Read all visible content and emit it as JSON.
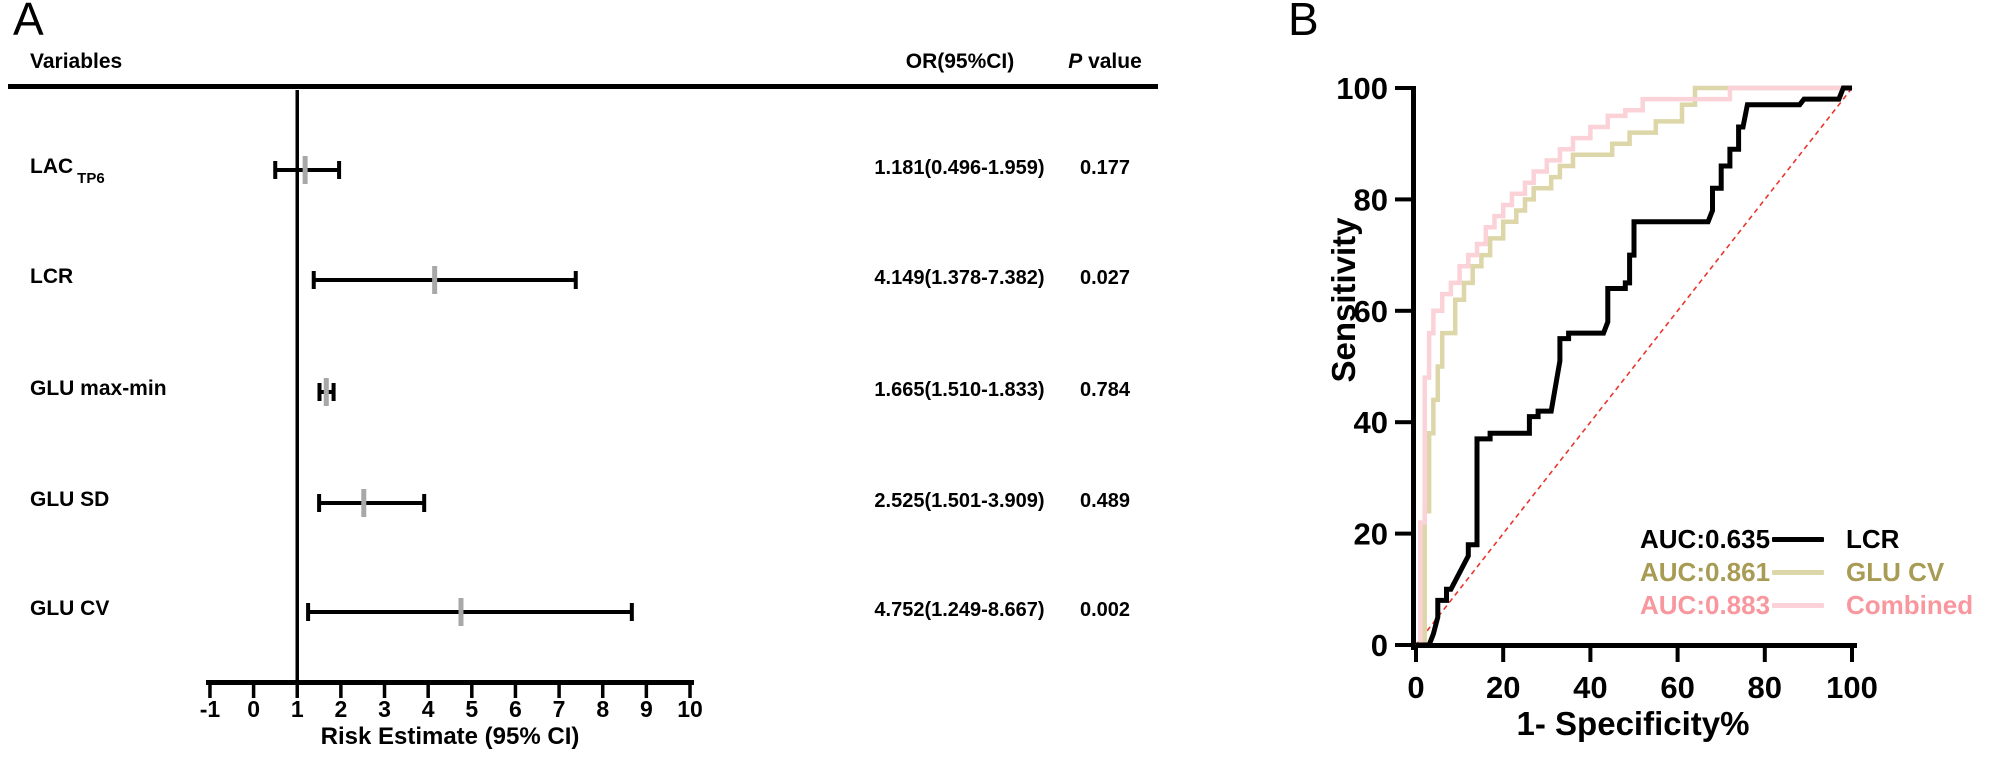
{
  "figure": {
    "background": "#ffffff"
  },
  "chart_data": [
    {
      "id": "forest-plot",
      "type": "scatter",
      "subtype": "forest",
      "panel_label": "A",
      "columns": [
        "Variables",
        "OR(95%CI)",
        "P value"
      ],
      "p_header": {
        "italic": "P",
        "rest": " value"
      },
      "xlabel": "Risk Estimate (95% CI)",
      "xlim": [
        -1,
        10
      ],
      "xticks": [
        -1,
        0,
        1,
        2,
        3,
        4,
        5,
        6,
        7,
        8,
        9,
        10
      ],
      "reference_line_x": 1,
      "marker_color": "#a8a8a8",
      "line_color": "#000000",
      "grid": false,
      "rows": [
        {
          "variable": "LAC",
          "variable_subscript": "TP6",
          "or": 1.181,
          "ci_low": 0.496,
          "ci_high": 1.959,
          "or_ci_text": "1.181(0.496-1.959)",
          "p_value": "0.177"
        },
        {
          "variable": "LCR",
          "variable_subscript": "",
          "or": 4.149,
          "ci_low": 1.378,
          "ci_high": 7.382,
          "or_ci_text": "4.149(1.378-7.382)",
          "p_value": "0.027"
        },
        {
          "variable": "GLU max-min",
          "variable_subscript": "",
          "or": 1.665,
          "ci_low": 1.51,
          "ci_high": 1.833,
          "or_ci_text": "1.665(1.510-1.833)",
          "p_value": "0.784"
        },
        {
          "variable": "GLU SD",
          "variable_subscript": "",
          "or": 2.525,
          "ci_low": 1.501,
          "ci_high": 3.909,
          "or_ci_text": "2.525(1.501-3.909)",
          "p_value": "0.489"
        },
        {
          "variable": "GLU CV",
          "variable_subscript": "",
          "or": 4.752,
          "ci_low": 1.249,
          "ci_high": 8.667,
          "or_ci_text": "4.752(1.249-8.667)",
          "p_value": "0.002"
        }
      ]
    },
    {
      "id": "roc-curves",
      "type": "line",
      "subtype": "roc",
      "panel_label": "B",
      "xlabel": "1- Specificity%",
      "ylabel": "Sensitivity",
      "xlim": [
        0,
        100
      ],
      "ylim": [
        0,
        100
      ],
      "xticks": [
        0,
        20,
        40,
        60,
        80,
        100
      ],
      "yticks": [
        0,
        20,
        40,
        60,
        80,
        100
      ],
      "grid": false,
      "legend_position": "bottom-right",
      "diagonal": {
        "color": "#e8362d",
        "dash": "dashed",
        "from": [
          0,
          0
        ],
        "to": [
          100,
          100
        ]
      },
      "series": [
        {
          "name": "LCR",
          "auc_label": "AUC:0.635",
          "line_color": "#000000",
          "text_color": "#000000",
          "line_width": 5,
          "points": [
            [
              0,
              0
            ],
            [
              3,
              0
            ],
            [
              4,
              2
            ],
            [
              5,
              5
            ],
            [
              5,
              8
            ],
            [
              7,
              8
            ],
            [
              7,
              10
            ],
            [
              8,
              10
            ],
            [
              12,
              16
            ],
            [
              12,
              18
            ],
            [
              14,
              18
            ],
            [
              14,
              37
            ],
            [
              17,
              37
            ],
            [
              17,
              38
            ],
            [
              26,
              38
            ],
            [
              26,
              41
            ],
            [
              28,
              41
            ],
            [
              28,
              42
            ],
            [
              31,
              42
            ],
            [
              33,
              51
            ],
            [
              33,
              55
            ],
            [
              35,
              55
            ],
            [
              35,
              56
            ],
            [
              43,
              56
            ],
            [
              44,
              58
            ],
            [
              44,
              64
            ],
            [
              48,
              64
            ],
            [
              48,
              65
            ],
            [
              49,
              65
            ],
            [
              49,
              70
            ],
            [
              50,
              70
            ],
            [
              50,
              76
            ],
            [
              67,
              76
            ],
            [
              68,
              78
            ],
            [
              68,
              82
            ],
            [
              70,
              82
            ],
            [
              70,
              86
            ],
            [
              72,
              86
            ],
            [
              72,
              89
            ],
            [
              74,
              89
            ],
            [
              74,
              93
            ],
            [
              75,
              93
            ],
            [
              76,
              97
            ],
            [
              79,
              97
            ],
            [
              88,
              97
            ],
            [
              89,
              98
            ],
            [
              97,
              98
            ],
            [
              98,
              100
            ],
            [
              100,
              100
            ]
          ]
        },
        {
          "name": "GLU CV",
          "auc_label": "AUC:0.861",
          "line_color": "#ddd6a8",
          "text_color": "#a89b54",
          "line_width": 4.5,
          "points": [
            [
              0,
              0
            ],
            [
              2,
              0
            ],
            [
              2,
              24
            ],
            [
              3,
              24
            ],
            [
              3,
              38
            ],
            [
              4,
              38
            ],
            [
              4,
              44
            ],
            [
              5,
              44
            ],
            [
              5,
              50
            ],
            [
              6,
              50
            ],
            [
              6,
              56
            ],
            [
              9,
              56
            ],
            [
              9,
              62
            ],
            [
              11,
              62
            ],
            [
              11,
              65
            ],
            [
              13,
              65
            ],
            [
              13,
              68
            ],
            [
              15,
              68
            ],
            [
              15,
              70
            ],
            [
              17,
              70
            ],
            [
              17,
              73
            ],
            [
              20,
              73
            ],
            [
              20,
              76
            ],
            [
              23,
              76
            ],
            [
              23,
              78
            ],
            [
              25,
              78
            ],
            [
              25,
              80
            ],
            [
              27,
              80
            ],
            [
              27,
              82
            ],
            [
              31,
              82
            ],
            [
              31,
              84
            ],
            [
              33,
              84
            ],
            [
              33,
              86
            ],
            [
              36,
              86
            ],
            [
              36,
              88
            ],
            [
              45,
              88
            ],
            [
              45,
              90
            ],
            [
              49,
              90
            ],
            [
              49,
              92
            ],
            [
              55,
              92
            ],
            [
              55,
              94
            ],
            [
              61,
              94
            ],
            [
              61,
              97
            ],
            [
              64,
              97
            ],
            [
              64,
              100
            ],
            [
              82,
              100
            ],
            [
              100,
              100
            ]
          ]
        },
        {
          "name": "Combined",
          "auc_label": "AUC:0.883",
          "line_color": "#fbd2d7",
          "text_color": "#f8979e",
          "line_width": 4.5,
          "points": [
            [
              0,
              0
            ],
            [
              1,
              0
            ],
            [
              1,
              22
            ],
            [
              2,
              22
            ],
            [
              2,
              48
            ],
            [
              3,
              48
            ],
            [
              3,
              56
            ],
            [
              4,
              56
            ],
            [
              4,
              60
            ],
            [
              6,
              60
            ],
            [
              6,
              63
            ],
            [
              8,
              63
            ],
            [
              8,
              65
            ],
            [
              10,
              65
            ],
            [
              10,
              68
            ],
            [
              12,
              68
            ],
            [
              12,
              70
            ],
            [
              14,
              70
            ],
            [
              14,
              72
            ],
            [
              16,
              72
            ],
            [
              16,
              75
            ],
            [
              18,
              75
            ],
            [
              18,
              77
            ],
            [
              20,
              77
            ],
            [
              20,
              79
            ],
            [
              22,
              79
            ],
            [
              22,
              81
            ],
            [
              25,
              81
            ],
            [
              25,
              83
            ],
            [
              27,
              83
            ],
            [
              27,
              85
            ],
            [
              30,
              85
            ],
            [
              30,
              87
            ],
            [
              33,
              87
            ],
            [
              33,
              89
            ],
            [
              36,
              89
            ],
            [
              36,
              91
            ],
            [
              40,
              91
            ],
            [
              40,
              93
            ],
            [
              44,
              93
            ],
            [
              44,
              95
            ],
            [
              48,
              95
            ],
            [
              48,
              96
            ],
            [
              52,
              96
            ],
            [
              52,
              98
            ],
            [
              72,
              98
            ],
            [
              72,
              100
            ],
            [
              100,
              100
            ]
          ]
        }
      ]
    }
  ]
}
